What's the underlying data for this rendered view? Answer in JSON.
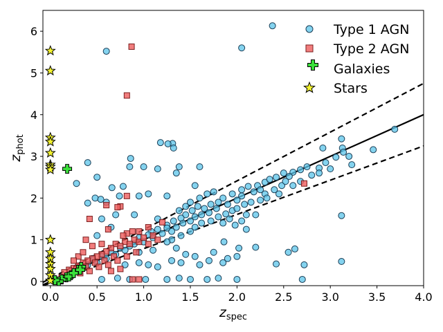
{
  "chart_data": {
    "type": "scatter",
    "xlabel": "z_spec",
    "ylabel": "z_phot",
    "xlabel_main": "z",
    "xlabel_sub": "spec",
    "ylabel_main": "z",
    "ylabel_sub": "phot",
    "xlim": [
      -0.08,
      4.0
    ],
    "ylim": [
      -0.1,
      6.5
    ],
    "x_ticks": [
      0.0,
      0.5,
      1.0,
      1.5,
      2.0,
      2.5,
      3.0,
      3.5,
      4.0
    ],
    "x_tick_labels": [
      "0.0",
      "0.5",
      "1.0",
      "1.5",
      "2.0",
      "2.5",
      "3.0",
      "3.5",
      "4.0"
    ],
    "y_ticks": [
      0,
      1,
      2,
      3,
      4,
      5,
      6
    ],
    "y_tick_labels": [
      "0",
      "1",
      "2",
      "3",
      "4",
      "5",
      "6"
    ],
    "grid": false,
    "legend_position": "top-right",
    "lines": [
      {
        "name": "one-to-one",
        "style": "solid",
        "x": [
          -0.08,
          4.0
        ],
        "y": [
          -0.08,
          4.0
        ]
      },
      {
        "name": "upper-bound",
        "style": "dashed",
        "x": [
          -0.08,
          4.0
        ],
        "y": [
          -0.02,
          4.75
        ]
      },
      {
        "name": "lower-bound",
        "style": "dashed",
        "x": [
          -0.08,
          4.0
        ],
        "y": [
          -0.1,
          3.25
        ]
      }
    ],
    "series": [
      {
        "name": "Type 1 AGN",
        "marker": "circle",
        "color": "#5bc4ea",
        "edge": "#1a3d55",
        "points": [
          [
            0.6,
            5.52
          ],
          [
            2.38,
            6.13
          ],
          [
            2.05,
            5.6
          ],
          [
            3.69,
            3.65
          ],
          [
            3.46,
            3.16
          ],
          [
            3.12,
            3.42
          ],
          [
            3.13,
            3.2
          ],
          [
            3.2,
            3.0
          ],
          [
            3.14,
            3.1
          ],
          [
            3.23,
            2.8
          ],
          [
            2.92,
            3.2
          ],
          [
            3.06,
            2.98
          ],
          [
            2.95,
            2.85
          ],
          [
            2.88,
            2.72
          ],
          [
            2.75,
            2.75
          ],
          [
            2.6,
            2.62
          ],
          [
            2.68,
            2.68
          ],
          [
            2.5,
            2.6
          ],
          [
            3.12,
            1.58
          ],
          [
            3.12,
            0.48
          ],
          [
            2.72,
            0.4
          ],
          [
            2.7,
            0.05
          ],
          [
            2.62,
            0.78
          ],
          [
            2.42,
            0.42
          ],
          [
            2.55,
            0.7
          ],
          [
            2.2,
            1.6
          ],
          [
            2.1,
            1.25
          ],
          [
            1.18,
            3.33
          ],
          [
            1.31,
            3.31
          ],
          [
            1.32,
            3.2
          ],
          [
            1.26,
            3.3
          ],
          [
            0.86,
            2.95
          ],
          [
            0.4,
            2.85
          ],
          [
            0.85,
            2.75
          ],
          [
            1.0,
            2.75
          ],
          [
            1.15,
            2.7
          ],
          [
            1.38,
            2.75
          ],
          [
            1.35,
            2.6
          ],
          [
            1.6,
            2.75
          ],
          [
            0.5,
            2.5
          ],
          [
            0.66,
            2.25
          ],
          [
            0.28,
            2.35
          ],
          [
            0.78,
            2.28
          ],
          [
            1.55,
            2.3
          ],
          [
            0.74,
            2.05
          ],
          [
            0.48,
            2.0
          ],
          [
            0.4,
            1.88
          ],
          [
            0.54,
            1.97
          ],
          [
            0.6,
            1.9
          ],
          [
            0.95,
            2.05
          ],
          [
            1.05,
            2.1
          ],
          [
            1.25,
            2.05
          ],
          [
            0.9,
            1.6
          ],
          [
            0.7,
            1.6
          ],
          [
            0.55,
            1.5
          ],
          [
            0.65,
            1.3
          ],
          [
            0.5,
            1.1
          ],
          [
            1.08,
            1.2
          ],
          [
            1.15,
            1.5
          ],
          [
            1.25,
            1.35
          ],
          [
            2.02,
            0.8
          ],
          [
            2.0,
            0.6
          ],
          [
            2.2,
            0.82
          ],
          [
            1.9,
            0.55
          ],
          [
            1.86,
            0.95
          ],
          [
            1.75,
            0.7
          ],
          [
            1.6,
            0.4
          ],
          [
            1.5,
            0.05
          ],
          [
            1.38,
            0.08
          ],
          [
            1.8,
            0.08
          ],
          [
            1.68,
            0.05
          ],
          [
            2.0,
            0.05
          ],
          [
            1.02,
            0.05
          ],
          [
            0.85,
            0.05
          ],
          [
            0.55,
            0.05
          ],
          [
            0.72,
            0.08
          ],
          [
            1.25,
            0.05
          ],
          [
            1.15,
            0.35
          ],
          [
            1.05,
            0.4
          ],
          [
            0.95,
            0.45
          ],
          [
            0.8,
            0.4
          ],
          [
            1.4,
            0.45
          ],
          [
            1.3,
            0.5
          ],
          [
            1.7,
            0.5
          ],
          [
            1.85,
            0.45
          ],
          [
            1.55,
            0.6
          ],
          [
            1.45,
            0.65
          ],
          [
            0.95,
            0.7
          ],
          [
            1.1,
            0.75
          ],
          [
            1.35,
            0.8
          ],
          [
            2.3,
            2.38
          ],
          [
            2.22,
            2.3
          ],
          [
            2.35,
            2.45
          ],
          [
            2.42,
            2.5
          ],
          [
            2.48,
            2.3
          ],
          [
            2.52,
            2.4
          ],
          [
            2.56,
            2.52
          ],
          [
            2.4,
            2.2
          ],
          [
            2.3,
            2.1
          ],
          [
            2.25,
            2.2
          ],
          [
            2.18,
            2.15
          ],
          [
            2.12,
            2.28
          ],
          [
            2.05,
            2.2
          ],
          [
            2.05,
            2.05
          ],
          [
            2.0,
            1.95
          ],
          [
            1.95,
            2.1
          ],
          [
            1.9,
            1.85
          ],
          [
            1.85,
            2.0
          ],
          [
            1.8,
            1.9
          ],
          [
            1.78,
            1.75
          ],
          [
            1.72,
            1.85
          ],
          [
            1.7,
            1.65
          ],
          [
            1.65,
            1.75
          ],
          [
            1.62,
            1.6
          ],
          [
            1.58,
            1.8
          ],
          [
            1.55,
            1.55
          ],
          [
            1.52,
            1.7
          ],
          [
            1.5,
            1.45
          ],
          [
            1.45,
            1.6
          ],
          [
            1.42,
            1.4
          ],
          [
            1.4,
            1.52
          ],
          [
            1.35,
            1.3
          ],
          [
            1.32,
            1.45
          ],
          [
            1.3,
            1.2
          ],
          [
            1.25,
            1.28
          ],
          [
            1.2,
            1.15
          ],
          [
            1.15,
            1.25
          ],
          [
            1.1,
            1.05
          ],
          [
            1.05,
            1.12
          ],
          [
            1.0,
            0.95
          ],
          [
            0.95,
            1.05
          ],
          [
            0.9,
            0.9
          ],
          [
            1.72,
            1.45
          ],
          [
            1.8,
            1.55
          ],
          [
            1.88,
            1.62
          ],
          [
            1.95,
            1.7
          ],
          [
            2.0,
            1.75
          ],
          [
            2.08,
            1.85
          ],
          [
            2.15,
            1.9
          ],
          [
            1.6,
            2.0
          ],
          [
            1.68,
            2.1
          ],
          [
            1.75,
            2.15
          ],
          [
            1.5,
            1.9
          ],
          [
            1.45,
            1.8
          ],
          [
            1.38,
            1.7
          ],
          [
            1.62,
            1.4
          ],
          [
            1.55,
            1.3
          ],
          [
            1.5,
            1.2
          ],
          [
            1.4,
            1.1
          ],
          [
            1.3,
            1.0
          ],
          [
            1.25,
            0.95
          ],
          [
            1.85,
            1.4
          ],
          [
            1.92,
            1.5
          ],
          [
            2.1,
            1.6
          ],
          [
            2.05,
            1.45
          ],
          [
            1.98,
            1.35
          ],
          [
            2.25,
            1.95
          ],
          [
            2.32,
            2.0
          ],
          [
            2.45,
            2.1
          ],
          [
            2.6,
            2.3
          ],
          [
            2.68,
            2.4
          ],
          [
            2.8,
            2.55
          ],
          [
            2.88,
            2.6
          ],
          [
            3.0,
            2.7
          ],
          [
            0.4,
            0.4
          ],
          [
            0.5,
            0.45
          ],
          [
            0.45,
            0.55
          ],
          [
            0.55,
            0.6
          ],
          [
            0.65,
            0.7
          ],
          [
            0.6,
            0.55
          ],
          [
            0.7,
            0.65
          ],
          [
            0.75,
            0.8
          ],
          [
            0.8,
            0.75
          ],
          [
            0.85,
            0.85
          ]
        ]
      },
      {
        "name": "Type 2 AGN",
        "marker": "square",
        "color": "#ee5d5d",
        "edge": "#7a1e1e",
        "points": [
          [
            0.87,
            5.63
          ],
          [
            0.82,
            4.46
          ],
          [
            2.72,
            2.35
          ],
          [
            0.82,
            2.05
          ],
          [
            0.6,
            1.83
          ],
          [
            0.75,
            1.8
          ],
          [
            0.72,
            1.78
          ],
          [
            0.42,
            1.5
          ],
          [
            0.38,
            1.0
          ],
          [
            0.62,
            1.25
          ],
          [
            0.82,
            1.15
          ],
          [
            0.95,
            1.2
          ],
          [
            1.05,
            1.3
          ],
          [
            1.2,
            1.42
          ],
          [
            0.9,
            1.0
          ],
          [
            0.8,
            0.95
          ],
          [
            0.7,
            0.9
          ],
          [
            0.65,
            0.8
          ],
          [
            0.6,
            0.72
          ],
          [
            0.55,
            0.65
          ],
          [
            0.5,
            0.6
          ],
          [
            0.45,
            0.55
          ],
          [
            0.4,
            0.5
          ],
          [
            0.35,
            0.45
          ],
          [
            0.3,
            0.38
          ],
          [
            0.25,
            0.32
          ],
          [
            0.2,
            0.28
          ],
          [
            0.15,
            0.22
          ],
          [
            0.75,
            0.85
          ],
          [
            0.85,
            0.9
          ],
          [
            0.95,
            0.95
          ],
          [
            1.0,
            1.05
          ],
          [
            1.1,
            1.1
          ],
          [
            0.68,
            0.6
          ],
          [
            0.58,
            0.5
          ],
          [
            0.48,
            0.45
          ],
          [
            0.38,
            0.35
          ],
          [
            0.28,
            0.3
          ],
          [
            0.62,
            0.4
          ],
          [
            0.72,
            0.5
          ],
          [
            0.82,
            0.6
          ],
          [
            0.92,
            0.7
          ],
          [
            0.52,
            0.35
          ],
          [
            0.42,
            0.25
          ],
          [
            0.32,
            0.2
          ],
          [
            0.22,
            0.15
          ],
          [
            0.12,
            0.1
          ],
          [
            0.95,
            0.05
          ],
          [
            0.88,
            0.05
          ],
          [
            0.3,
            0.6
          ],
          [
            0.55,
            0.9
          ],
          [
            0.45,
            0.85
          ],
          [
            0.78,
            1.1
          ],
          [
            0.88,
            1.2
          ],
          [
            1.05,
            0.9
          ],
          [
            1.15,
            1.0
          ],
          [
            0.35,
            0.7
          ],
          [
            0.25,
            0.5
          ],
          [
            0.65,
            0.25
          ],
          [
            0.75,
            0.3
          ]
        ]
      },
      {
        "name": "Galaxies",
        "marker": "plus",
        "color": "#3be03b",
        "edge": "#000000",
        "points": [
          [
            0.18,
            2.7
          ],
          [
            0.33,
            0.35
          ],
          [
            0.32,
            0.28
          ],
          [
            0.22,
            0.15
          ],
          [
            0.17,
            0.1
          ],
          [
            0.12,
            0.05
          ],
          [
            0.09,
            0.0
          ],
          [
            0.05,
            0.03
          ],
          [
            0.2,
            0.12
          ],
          [
            0.25,
            0.2
          ]
        ]
      },
      {
        "name": "Stars",
        "marker": "star",
        "color": "#f2f230",
        "edge": "#000000",
        "points": [
          [
            0.0,
            5.53
          ],
          [
            0.0,
            5.05
          ],
          [
            0.0,
            3.45
          ],
          [
            0.0,
            3.35
          ],
          [
            0.0,
            3.08
          ],
          [
            0.0,
            2.8
          ],
          [
            0.0,
            2.75
          ],
          [
            0.0,
            2.68
          ],
          [
            0.0,
            1.0
          ],
          [
            0.0,
            0.7
          ],
          [
            0.0,
            0.55
          ],
          [
            0.0,
            0.42
          ],
          [
            0.0,
            0.3
          ],
          [
            0.0,
            0.15
          ],
          [
            0.0,
            0.02
          ]
        ]
      }
    ]
  }
}
